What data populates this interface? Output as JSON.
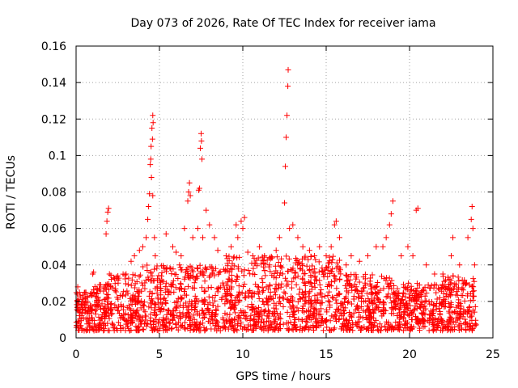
{
  "chart_data": {
    "type": "scatter",
    "title": "Day 073 of 2026, Rate Of TEC Index for receiver iama",
    "xlabel": "GPS time / hours",
    "ylabel": "ROTI / TECUs",
    "xlim": [
      0,
      25
    ],
    "ylim": [
      0,
      0.16
    ],
    "xticks": [
      "0",
      "5",
      "10",
      "15",
      "20",
      "25"
    ],
    "yticks": [
      "0",
      "0.02",
      "0.04",
      "0.06",
      "0.08",
      "0.1",
      "0.12",
      "0.14",
      "0.16"
    ],
    "grid": true,
    "marker": "+",
    "color": "#ff0000",
    "series": [
      {
        "points": [
          [
            0.1,
            0.028
          ],
          [
            0.2,
            0.025
          ],
          [
            0.4,
            0.02
          ],
          [
            1.0,
            0.035
          ],
          [
            1.05,
            0.036
          ],
          [
            1.8,
            0.057
          ],
          [
            1.85,
            0.064
          ],
          [
            1.9,
            0.069
          ],
          [
            1.95,
            0.071
          ],
          [
            2.0,
            0.035
          ],
          [
            3.0,
            0.035
          ],
          [
            3.3,
            0.042
          ],
          [
            3.5,
            0.045
          ],
          [
            3.8,
            0.048
          ],
          [
            4.0,
            0.05
          ],
          [
            4.2,
            0.055
          ],
          [
            4.3,
            0.065
          ],
          [
            4.35,
            0.072
          ],
          [
            4.4,
            0.079
          ],
          [
            4.45,
            0.095
          ],
          [
            4.5,
            0.105
          ],
          [
            4.55,
            0.115
          ],
          [
            4.6,
            0.122
          ],
          [
            4.62,
            0.118
          ],
          [
            4.58,
            0.109
          ],
          [
            4.48,
            0.098
          ],
          [
            4.52,
            0.088
          ],
          [
            4.6,
            0.078
          ],
          [
            4.7,
            0.055
          ],
          [
            4.75,
            0.045
          ],
          [
            5.4,
            0.057
          ],
          [
            5.8,
            0.05
          ],
          [
            6.0,
            0.047
          ],
          [
            6.3,
            0.045
          ],
          [
            6.5,
            0.06
          ],
          [
            6.7,
            0.075
          ],
          [
            6.75,
            0.08
          ],
          [
            6.8,
            0.085
          ],
          [
            6.85,
            0.078
          ],
          [
            7.0,
            0.055
          ],
          [
            7.3,
            0.06
          ],
          [
            7.35,
            0.081
          ],
          [
            7.4,
            0.082
          ],
          [
            7.45,
            0.104
          ],
          [
            7.5,
            0.112
          ],
          [
            7.52,
            0.108
          ],
          [
            7.55,
            0.098
          ],
          [
            7.6,
            0.055
          ],
          [
            7.8,
            0.07
          ],
          [
            8.0,
            0.062
          ],
          [
            8.3,
            0.055
          ],
          [
            8.5,
            0.048
          ],
          [
            9.0,
            0.045
          ],
          [
            9.3,
            0.05
          ],
          [
            9.6,
            0.062
          ],
          [
            9.7,
            0.055
          ],
          [
            9.9,
            0.064
          ],
          [
            10.0,
            0.06
          ],
          [
            10.1,
            0.066
          ],
          [
            10.3,
            0.047
          ],
          [
            10.6,
            0.045
          ],
          [
            11.0,
            0.05
          ],
          [
            11.3,
            0.045
          ],
          [
            11.6,
            0.04
          ],
          [
            12.0,
            0.048
          ],
          [
            12.2,
            0.055
          ],
          [
            12.5,
            0.074
          ],
          [
            12.55,
            0.094
          ],
          [
            12.6,
            0.11
          ],
          [
            12.65,
            0.122
          ],
          [
            12.7,
            0.138
          ],
          [
            12.72,
            0.147
          ],
          [
            12.8,
            0.06
          ],
          [
            13.0,
            0.062
          ],
          [
            13.3,
            0.055
          ],
          [
            13.6,
            0.05
          ],
          [
            14.0,
            0.048
          ],
          [
            14.3,
            0.045
          ],
          [
            14.6,
            0.05
          ],
          [
            15.0,
            0.045
          ],
          [
            15.3,
            0.05
          ],
          [
            15.5,
            0.062
          ],
          [
            15.6,
            0.064
          ],
          [
            15.8,
            0.055
          ],
          [
            16.2,
            0.04
          ],
          [
            16.5,
            0.045
          ],
          [
            17.0,
            0.042
          ],
          [
            17.5,
            0.045
          ],
          [
            18.0,
            0.05
          ],
          [
            18.4,
            0.05
          ],
          [
            18.6,
            0.055
          ],
          [
            18.8,
            0.062
          ],
          [
            18.9,
            0.068
          ],
          [
            19.0,
            0.075
          ],
          [
            19.5,
            0.045
          ],
          [
            19.9,
            0.05
          ],
          [
            20.2,
            0.045
          ],
          [
            20.4,
            0.07
          ],
          [
            20.5,
            0.071
          ],
          [
            21.0,
            0.04
          ],
          [
            21.5,
            0.035
          ],
          [
            22.0,
            0.035
          ],
          [
            22.5,
            0.045
          ],
          [
            22.6,
            0.055
          ],
          [
            23.0,
            0.04
          ],
          [
            23.5,
            0.055
          ],
          [
            23.7,
            0.065
          ],
          [
            23.75,
            0.072
          ],
          [
            23.8,
            0.06
          ],
          [
            23.9,
            0.04
          ]
        ]
      }
    ]
  }
}
